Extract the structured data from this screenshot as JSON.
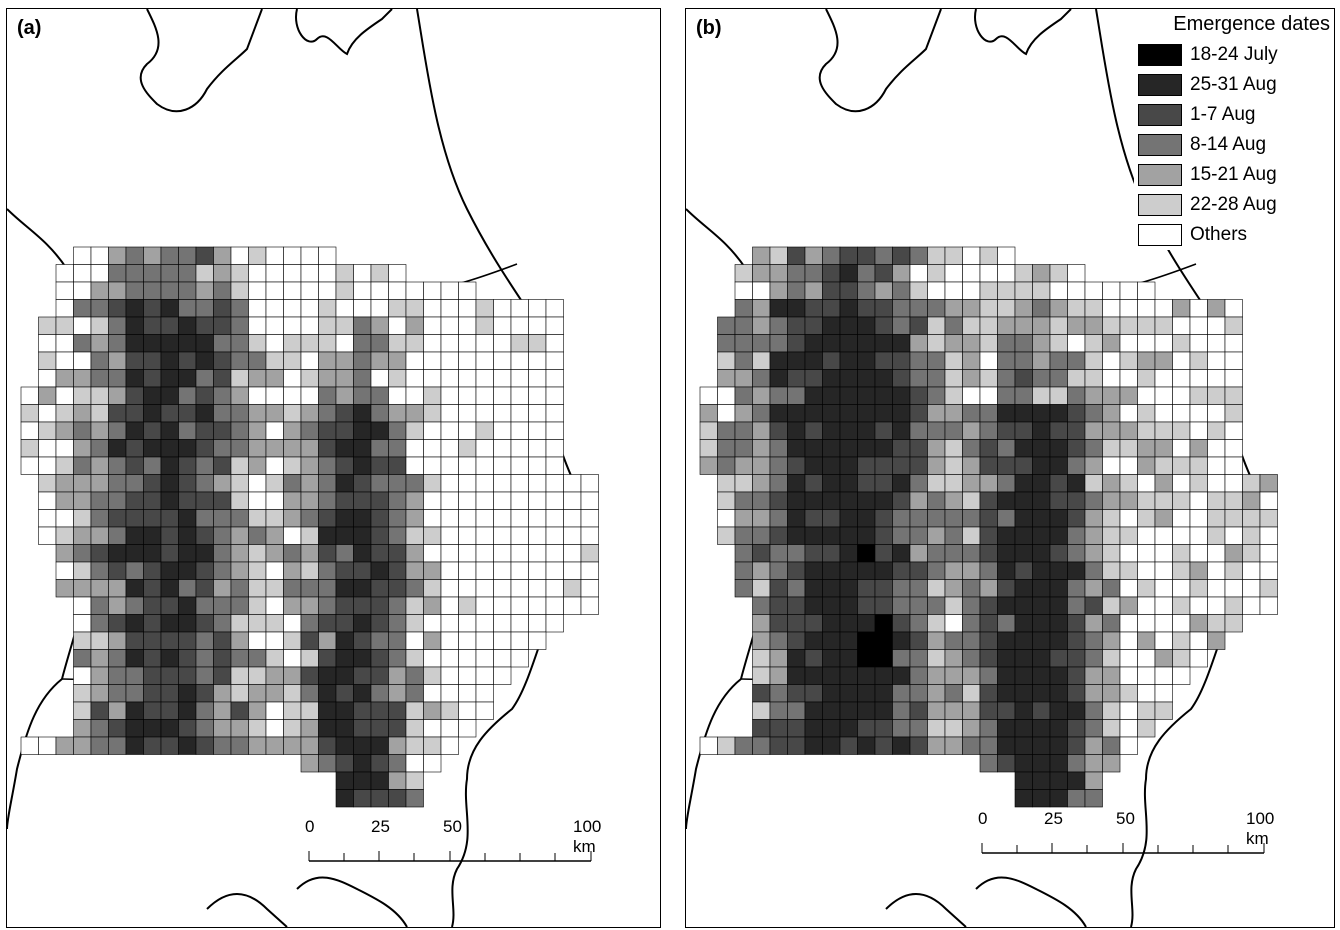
{
  "panels": [
    {
      "label": "(a)"
    },
    {
      "label": "(b)"
    }
  ],
  "scalebar": {
    "ticks": [
      "0",
      "25",
      "50",
      "100 km"
    ]
  },
  "legend": {
    "title": "Emergence dates",
    "items": [
      {
        "label": "18-24 July",
        "color": "#000000"
      },
      {
        "label": "25-31 Aug",
        "color": "#262626"
      },
      {
        "label": "1-7 Aug",
        "color": "#484848"
      },
      {
        "label": "8-14 Aug",
        "color": "#747474"
      },
      {
        "label": "15-21 Aug",
        "color": "#a2a2a2"
      },
      {
        "label": "22-28 Aug",
        "color": "#cdcdcd"
      },
      {
        "label": "Others",
        "color": "#ffffff"
      }
    ]
  }
}
